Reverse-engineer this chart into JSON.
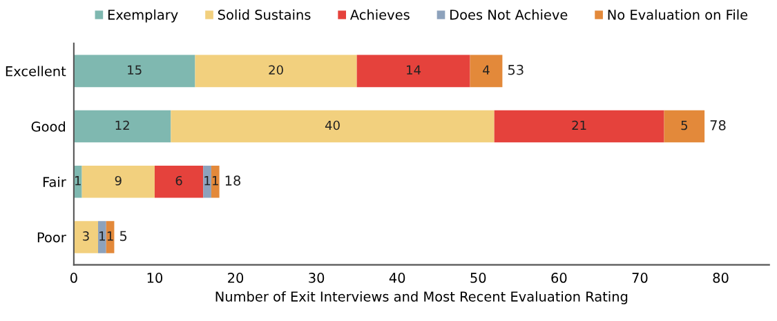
{
  "chart_data": {
    "type": "bar",
    "orientation": "horizontal",
    "stacked": true,
    "xlabel": "Number of Exit Interviews and Most Recent Evaluation Rating",
    "categories": [
      "Excellent",
      "Good",
      "Fair",
      "Poor"
    ],
    "series": [
      {
        "name": "Exemplary",
        "color": "#7fb8b0",
        "values": [
          15,
          12,
          1,
          null
        ]
      },
      {
        "name": "Solid Sustains",
        "color": "#f2d07e",
        "values": [
          20,
          40,
          9,
          3
        ]
      },
      {
        "name": "Achieves",
        "color": "#e5423c",
        "values": [
          14,
          21,
          6,
          null
        ]
      },
      {
        "name": "Does Not Achieve",
        "color": "#8da2bc",
        "values": [
          null,
          null,
          1,
          1
        ]
      },
      {
        "name": "No Evaluation on File",
        "color": "#e3893a",
        "values": [
          4,
          5,
          1,
          1
        ]
      }
    ],
    "totals": [
      "53",
      "78",
      "18",
      "5"
    ],
    "data_labels": true,
    "xlim": [
      0,
      86
    ],
    "xticks": [
      0,
      10,
      20,
      30,
      40,
      50,
      60,
      70,
      80
    ],
    "grid": false,
    "legend": "top"
  }
}
